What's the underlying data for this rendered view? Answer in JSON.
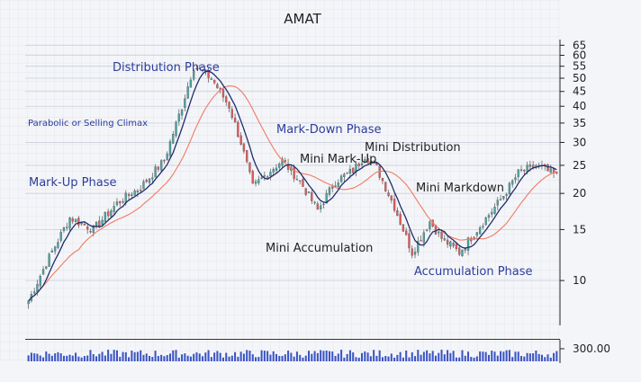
{
  "chart_data": {
    "type": "candlestick",
    "title": "AMAT",
    "y_scale": "log",
    "ylim": [
      7,
      68
    ],
    "y_ticks": [
      10,
      15,
      20,
      25,
      30,
      35,
      40,
      45,
      50,
      55,
      60,
      65
    ],
    "y_tick_labels": [
      "10",
      "15",
      "20",
      "25",
      "30",
      "35",
      "40",
      "45",
      "50",
      "55",
      "60",
      "65"
    ],
    "volume_tick_label": "300.00",
    "grid": true,
    "colors": {
      "up_candle": "#4aa3a0",
      "down_candle": "#e0595a",
      "ma_fast": "#1f2d6b",
      "ma_slow": "#f07a62",
      "volume": "#3b54c4",
      "phase_text": "#2c3d9c",
      "mini_text": "#222222"
    },
    "price_path": [
      {
        "i": 0,
        "price": 8.5
      },
      {
        "i": 6,
        "price": 11.5
      },
      {
        "i": 14,
        "price": 16.5
      },
      {
        "i": 22,
        "price": 15.0
      },
      {
        "i": 30,
        "price": 18.5
      },
      {
        "i": 38,
        "price": 21.0
      },
      {
        "i": 46,
        "price": 26.0
      },
      {
        "i": 52,
        "price": 40.0
      },
      {
        "i": 56,
        "price": 55.0
      },
      {
        "i": 62,
        "price": 50.0
      },
      {
        "i": 68,
        "price": 40.0
      },
      {
        "i": 72,
        "price": 30.0
      },
      {
        "i": 76,
        "price": 21.0
      },
      {
        "i": 82,
        "price": 24.0
      },
      {
        "i": 86,
        "price": 26.0
      },
      {
        "i": 92,
        "price": 22.0
      },
      {
        "i": 98,
        "price": 17.5
      },
      {
        "i": 104,
        "price": 22.0
      },
      {
        "i": 110,
        "price": 24.0
      },
      {
        "i": 114,
        "price": 27.0
      },
      {
        "i": 118,
        "price": 24.5
      },
      {
        "i": 124,
        "price": 18.0
      },
      {
        "i": 130,
        "price": 12.5
      },
      {
        "i": 136,
        "price": 16.0
      },
      {
        "i": 140,
        "price": 14.0
      },
      {
        "i": 146,
        "price": 12.5
      },
      {
        "i": 152,
        "price": 15.0
      },
      {
        "i": 160,
        "price": 19.0
      },
      {
        "i": 166,
        "price": 23.5
      },
      {
        "i": 172,
        "price": 25.0
      },
      {
        "i": 179,
        "price": 23.0
      }
    ],
    "annotations": [
      {
        "text": "Distribution Phase",
        "kind": "phase"
      },
      {
        "text": "Parabolic or Selling Climax",
        "kind": "phase-small"
      },
      {
        "text": "Mark-Up Phase",
        "kind": "phase"
      },
      {
        "text": "Mark-Down Phase",
        "kind": "phase"
      },
      {
        "text": "Mini Mark-Up",
        "kind": "mini"
      },
      {
        "text": "Mini Distribution",
        "kind": "mini"
      },
      {
        "text": "Mini Markdown",
        "kind": "mini"
      },
      {
        "text": "Mini Accumulation",
        "kind": "mini"
      },
      {
        "text": "Accumulation Phase",
        "kind": "phase"
      }
    ]
  }
}
